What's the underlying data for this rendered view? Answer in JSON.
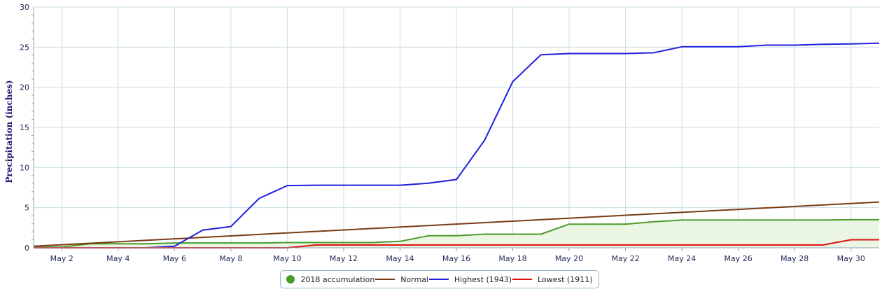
{
  "chart_data": {
    "type": "line",
    "title": "",
    "xlabel": "",
    "ylabel": "Precipitation (inches)",
    "ylim": [
      0,
      30
    ],
    "xlim": [
      1,
      31
    ],
    "yticks": [
      0,
      5,
      10,
      15,
      20,
      25,
      30
    ],
    "xticks": [
      {
        "day": 2,
        "label": "May 2"
      },
      {
        "day": 4,
        "label": "May 4"
      },
      {
        "day": 6,
        "label": "May 6"
      },
      {
        "day": 8,
        "label": "May 8"
      },
      {
        "day": 10,
        "label": "May 10"
      },
      {
        "day": 12,
        "label": "May 12"
      },
      {
        "day": 14,
        "label": "May 14"
      },
      {
        "day": 16,
        "label": "May 16"
      },
      {
        "day": 18,
        "label": "May 18"
      },
      {
        "day": 20,
        "label": "May 20"
      },
      {
        "day": 22,
        "label": "May 22"
      },
      {
        "day": 24,
        "label": "May 24"
      },
      {
        "day": 26,
        "label": "May 26"
      },
      {
        "day": 28,
        "label": "May 28"
      },
      {
        "day": 30,
        "label": "May 30"
      }
    ],
    "grid": true,
    "legend_position": "bottom-center",
    "series": [
      {
        "name": "2018 accumulation",
        "color": "#4c9a2a",
        "fill": "#eaf5e3",
        "marker": "dot",
        "x": [
          1,
          2,
          3,
          4,
          5,
          6,
          7,
          8,
          9,
          10,
          11,
          12,
          13,
          14,
          15,
          16,
          17,
          18,
          19,
          20,
          21,
          22,
          23,
          24,
          25,
          26,
          27,
          28,
          29,
          30,
          31
        ],
        "y": [
          0.1,
          0.1,
          0.5,
          0.5,
          0.5,
          0.6,
          0.6,
          0.6,
          0.6,
          0.65,
          0.65,
          0.65,
          0.65,
          0.8,
          1.5,
          1.5,
          1.7,
          1.7,
          1.7,
          2.95,
          2.95,
          2.95,
          3.25,
          3.45,
          3.45,
          3.45,
          3.45,
          3.45,
          3.45,
          3.5,
          3.5
        ]
      },
      {
        "name": "Normal",
        "color": "#7a3b12",
        "marker": "line",
        "x": [
          1,
          31
        ],
        "y": [
          0.2,
          5.7
        ]
      },
      {
        "name": "Highest (1943)",
        "color": "#1f1fdc",
        "marker": "line",
        "x": [
          1,
          2,
          3,
          4,
          5,
          6,
          7,
          8,
          9,
          10,
          11,
          12,
          13,
          14,
          15,
          16,
          17,
          18,
          19,
          20,
          21,
          22,
          23,
          24,
          25,
          26,
          27,
          28,
          29,
          30,
          31
        ],
        "y": [
          0,
          0,
          0,
          0,
          0,
          0.2,
          2.2,
          2.65,
          6.15,
          7.75,
          7.8,
          7.8,
          7.8,
          7.8,
          8.05,
          8.5,
          13.4,
          20.7,
          24.05,
          24.2,
          24.2,
          24.2,
          24.3,
          25.05,
          25.05,
          25.05,
          25.25,
          25.25,
          25.35,
          25.4,
          25.5
        ]
      },
      {
        "name": "Lowest (1911)",
        "color": "#e01010",
        "marker": "line",
        "x": [
          1,
          2,
          3,
          4,
          5,
          6,
          7,
          8,
          9,
          10,
          11,
          12,
          13,
          14,
          15,
          16,
          17,
          18,
          19,
          20,
          21,
          22,
          23,
          24,
          25,
          26,
          27,
          28,
          29,
          30,
          31
        ],
        "y": [
          0,
          0,
          0,
          0,
          0,
          0,
          0,
          0,
          0,
          0,
          0.35,
          0.35,
          0.35,
          0.35,
          0.35,
          0.35,
          0.35,
          0.35,
          0.35,
          0.35,
          0.35,
          0.35,
          0.35,
          0.35,
          0.35,
          0.35,
          0.35,
          0.35,
          0.35,
          1.0,
          1.0
        ]
      }
    ]
  }
}
